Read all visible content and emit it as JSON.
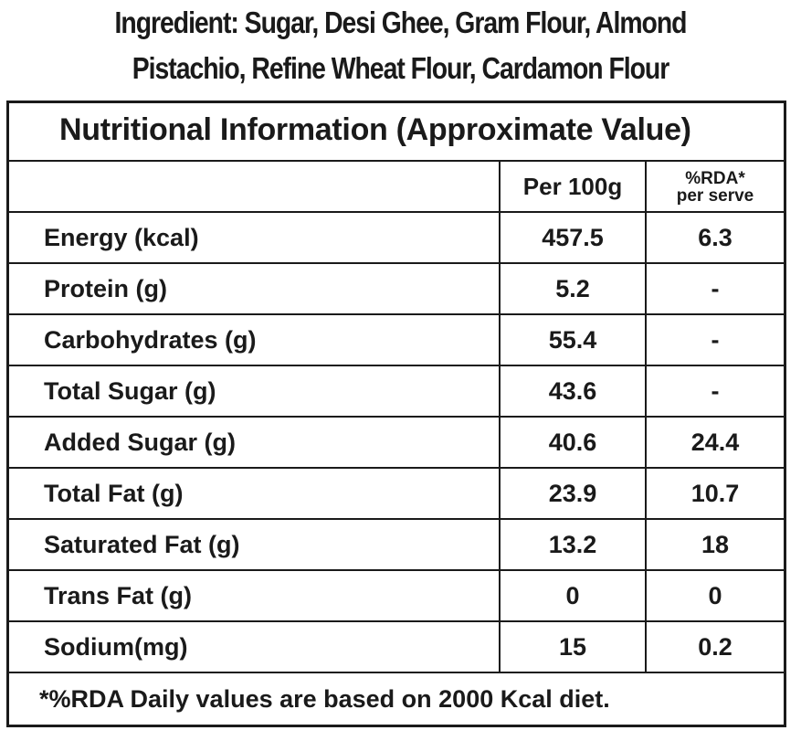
{
  "ingredients": {
    "line1": "Ingredient: Sugar, Desi Ghee, Gram Flour, Almond",
    "line2": "Pistachio, Refine Wheat Flour, Cardamon Flour"
  },
  "nutrition_table": {
    "title": "Nutritional Information (Approximate Value)",
    "headers": {
      "name": "",
      "per_100g": "Per 100g",
      "rda_line1": "%RDA*",
      "rda_line2": "per serve"
    },
    "rows": [
      {
        "name": "Energy (kcal)",
        "per_100g": "457.5",
        "rda": "6.3"
      },
      {
        "name": "Protein (g)",
        "per_100g": "5.2",
        "rda": "-"
      },
      {
        "name": "Carbohydrates (g)",
        "per_100g": "55.4",
        "rda": "-"
      },
      {
        "name": "Total Sugar (g)",
        "per_100g": "43.6",
        "rda": "-"
      },
      {
        "name": "Added Sugar (g)",
        "per_100g": "40.6",
        "rda": "24.4"
      },
      {
        "name": "Total Fat (g)",
        "per_100g": "23.9",
        "rda": "10.7"
      },
      {
        "name": "Saturated Fat (g)",
        "per_100g": "13.2",
        "rda": "18"
      },
      {
        "name": "Trans Fat (g)",
        "per_100g": "0",
        "rda": "0"
      },
      {
        "name": "Sodium(mg)",
        "per_100g": "15",
        "rda": "0.2"
      }
    ],
    "footnote": "*%RDA Daily values are based on 2000 Kcal diet."
  }
}
